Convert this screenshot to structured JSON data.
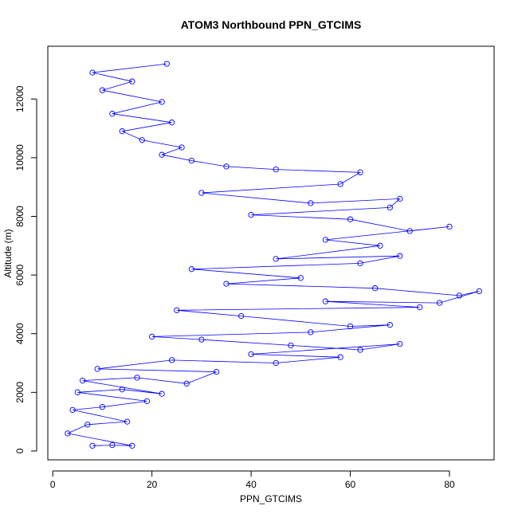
{
  "chart_data": {
    "type": "scatter",
    "title": "ATOM3 Northbound PPN_GTCIMS",
    "xlabel": "PPN_GTCIMS",
    "ylabel": "Altitude (m)",
    "xlim": [
      -1,
      89
    ],
    "ylim": [
      -300,
      13800
    ],
    "x_ticks": [
      0,
      20,
      40,
      60,
      80
    ],
    "y_ticks": [
      0,
      2000,
      4000,
      6000,
      8000,
      10000,
      12000
    ],
    "grid": false,
    "legend": "none",
    "series_color": "#0000ff",
    "marker": "open-circle",
    "line": "connected",
    "series": [
      {
        "points": [
          [
            8,
            180
          ],
          [
            12,
            200
          ],
          [
            16,
            180
          ],
          [
            3,
            600
          ],
          [
            7,
            900
          ],
          [
            15,
            1000
          ],
          [
            4,
            1400
          ],
          [
            10,
            1500
          ],
          [
            19,
            1700
          ],
          [
            5,
            2000
          ],
          [
            14,
            2100
          ],
          [
            22,
            1950
          ],
          [
            6,
            2400
          ],
          [
            17,
            2500
          ],
          [
            27,
            2300
          ],
          [
            33,
            2700
          ],
          [
            9,
            2800
          ],
          [
            24,
            3100
          ],
          [
            45,
            3000
          ],
          [
            58,
            3200
          ],
          [
            40,
            3300
          ],
          [
            70,
            3650
          ],
          [
            62,
            3450
          ],
          [
            48,
            3600
          ],
          [
            30,
            3800
          ],
          [
            20,
            3900
          ],
          [
            52,
            4050
          ],
          [
            68,
            4300
          ],
          [
            60,
            4250
          ],
          [
            38,
            4600
          ],
          [
            25,
            4800
          ],
          [
            74,
            4900
          ],
          [
            55,
            5100
          ],
          [
            78,
            5050
          ],
          [
            86,
            5450
          ],
          [
            82,
            5300
          ],
          [
            65,
            5550
          ],
          [
            35,
            5700
          ],
          [
            50,
            5900
          ],
          [
            28,
            6200
          ],
          [
            62,
            6400
          ],
          [
            70,
            6650
          ],
          [
            45,
            6550
          ],
          [
            66,
            7000
          ],
          [
            55,
            7200
          ],
          [
            80,
            7650
          ],
          [
            72,
            7500
          ],
          [
            60,
            7900
          ],
          [
            40,
            8050
          ],
          [
            68,
            8300
          ],
          [
            70,
            8600
          ],
          [
            52,
            8450
          ],
          [
            30,
            8800
          ],
          [
            58,
            9100
          ],
          [
            62,
            9500
          ],
          [
            45,
            9600
          ],
          [
            35,
            9700
          ],
          [
            28,
            9900
          ],
          [
            22,
            10100
          ],
          [
            26,
            10350
          ],
          [
            18,
            10600
          ],
          [
            14,
            10900
          ],
          [
            24,
            11200
          ],
          [
            12,
            11500
          ],
          [
            22,
            11900
          ],
          [
            10,
            12300
          ],
          [
            16,
            12600
          ],
          [
            8,
            12900
          ],
          [
            23,
            13200
          ]
        ]
      }
    ]
  }
}
